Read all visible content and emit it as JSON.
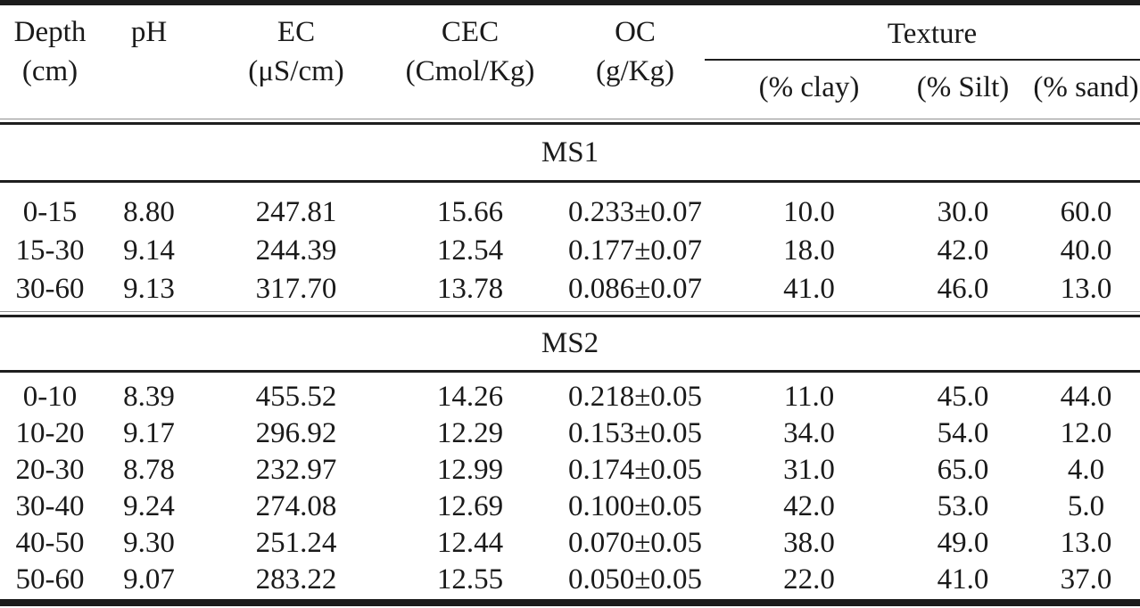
{
  "table": {
    "columns": [
      {
        "line1": "Depth",
        "line2": "(cm)"
      },
      {
        "line1": "pH",
        "line2": ""
      },
      {
        "line1": "EC",
        "line2": "(μS/cm)"
      },
      {
        "line1": "CEC",
        "line2": "(Cmol/Kg)"
      },
      {
        "line1": "OC",
        "line2": "(g/Kg)"
      }
    ],
    "texture_group": {
      "label": "Texture",
      "subcolumns": [
        "(% clay)",
        "(% Silt)",
        "(% sand)"
      ]
    },
    "sections": [
      {
        "label": "MS1",
        "rows": [
          {
            "cells": [
              "0-15",
              "8.80",
              "247.81",
              "15.66",
              "0.233±0.07",
              "10.0",
              "30.0",
              "60.0"
            ]
          },
          {
            "cells": [
              "15-30",
              "9.14",
              "244.39",
              "12.54",
              "0.177±0.07",
              "18.0",
              "42.0",
              "40.0"
            ]
          },
          {
            "cells": [
              "30-60",
              "9.13",
              "317.70",
              "13.78",
              "0.086±0.07",
              "41.0",
              "46.0",
              "13.0"
            ]
          }
        ]
      },
      {
        "label": "MS2",
        "rows": [
          {
            "cells": [
              "0-10",
              "8.39",
              "455.52",
              "14.26",
              "0.218±0.05",
              "11.0",
              "45.0",
              "44.0"
            ]
          },
          {
            "cells": [
              "10-20",
              "9.17",
              "296.92",
              "12.29",
              "0.153±0.05",
              "34.0",
              "54.0",
              "12.0"
            ]
          },
          {
            "cells": [
              "20-30",
              "8.78",
              "232.97",
              "12.99",
              "0.174±0.05",
              "31.0",
              "65.0",
              "4.0"
            ]
          },
          {
            "cells": [
              "30-40",
              "9.24",
              "274.08",
              "12.69",
              "0.100±0.05",
              "42.0",
              "53.0",
              "5.0"
            ]
          },
          {
            "cells": [
              "40-50",
              "9.30",
              "251.24",
              "12.44",
              "0.070±0.05",
              "38.0",
              "49.0",
              "13.0"
            ]
          },
          {
            "cells": [
              "50-60",
              "9.07",
              "283.22",
              "12.55",
              "0.050±0.05",
              "22.0",
              "41.0",
              "37.0"
            ]
          }
        ]
      }
    ]
  },
  "colors": {
    "text": "#1a1a1a",
    "rule": "#1c1c1c",
    "background": "#ffffff"
  }
}
